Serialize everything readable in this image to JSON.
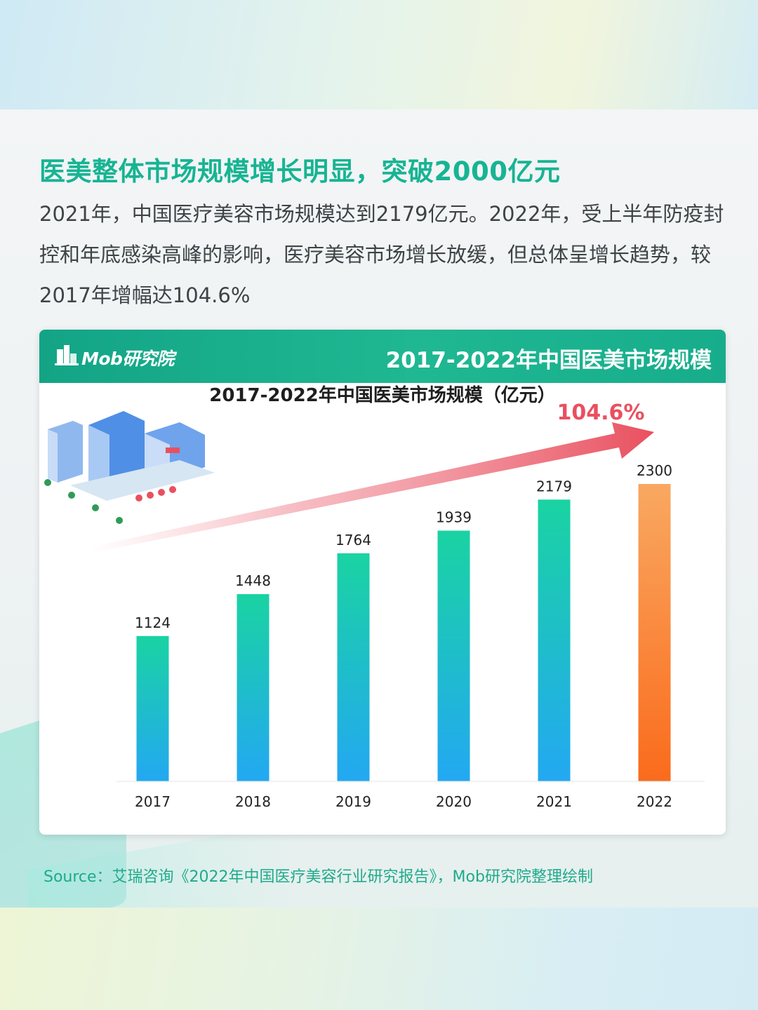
{
  "headline": "医美整体市场规模增长明显，突破2000亿元",
  "intro": "2021年，中国医疗美容市场规模达到2179亿元。2022年，受上半年防疫封控和年底感染高峰的影响，医疗美容市场增长放缓，但总体呈增长趋势，较2017年增幅达104.6%",
  "chart_header": {
    "logo_text": "Mob研究院",
    "title": "2017-2022年中国医美市场规模"
  },
  "source": "Source：艾瑞咨询《2022年中国医疗美容行业研究报告》，Mob研究院整理绘制",
  "colors": {
    "accent": "#17b493",
    "bar_top": "#1ad3a2",
    "bar_bottom": "#23a8f2",
    "highlight_top": "#f9a861",
    "highlight_bottom": "#fa6b1c",
    "arrow": "#e9505f"
  },
  "chart_data": {
    "type": "bar",
    "title": "2017-2022年中国医美市场规模（亿元）",
    "categories": [
      "2017",
      "2018",
      "2019",
      "2020",
      "2021",
      "2022"
    ],
    "values": [
      1124,
      1448,
      1764,
      1939,
      2179,
      2300
    ],
    "data_labels": [
      "1124",
      "1448",
      "1764",
      "1939",
      "2179",
      "2300"
    ],
    "highlight_category": "2022",
    "annotation": "104.6%",
    "ylim": [
      0,
      2300
    ],
    "grid": false,
    "legend": "none"
  }
}
